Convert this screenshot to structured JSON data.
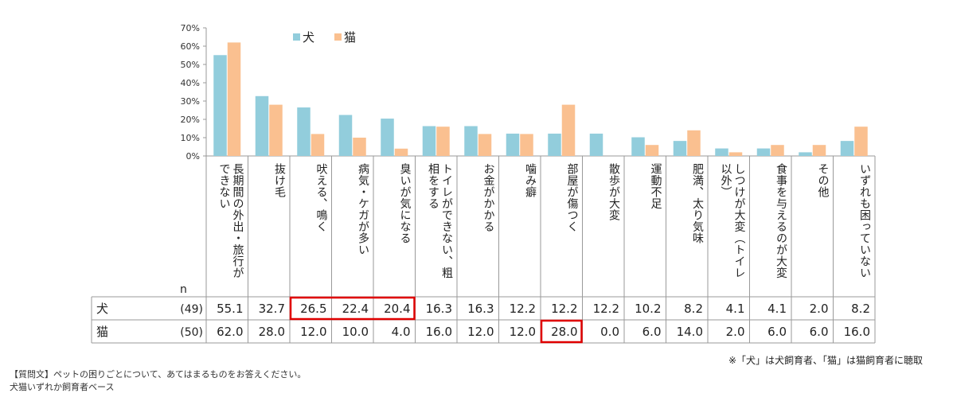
{
  "chart_data": {
    "type": "bar",
    "categories": [
      "長期間の外出・旅行ができない",
      "抜け毛",
      "吠える、鳴く",
      "病気・ケガが多い",
      "臭いが気になる",
      "トイレができない、粗相をする",
      "お金がかかる",
      "噛み癖",
      "部屋が傷つく",
      "散歩が大変",
      "運動不足",
      "肥満、太り気味",
      "しつけが大変（トイレ以外）",
      "食事を与えるのが大変",
      "その他",
      "いずれも困っていない"
    ],
    "category_lines": [
      [
        "長期間の外出・旅行が",
        "できない"
      ],
      [
        "抜け毛"
      ],
      [
        "吠える、鳴く"
      ],
      [
        "病気・ケガが多い"
      ],
      [
        "臭いが気になる"
      ],
      [
        "トイレができない、粗",
        "相をする"
      ],
      [
        "お金がかかる"
      ],
      [
        "噛み癖"
      ],
      [
        "部屋が傷つく"
      ],
      [
        "散歩が大変"
      ],
      [
        "運動不足"
      ],
      [
        "肥満、太り気味"
      ],
      [
        "しつけが大変（トイレ",
        "以外）"
      ],
      [
        "食事を与えるのが大変"
      ],
      [
        "その他"
      ],
      [
        "いずれも困っていない"
      ]
    ],
    "series": [
      {
        "name": "犬",
        "n": "(49)",
        "color": "#92CDDC",
        "values": [
          55.1,
          32.7,
          26.5,
          22.4,
          20.4,
          16.3,
          16.3,
          12.2,
          12.2,
          12.2,
          10.2,
          8.2,
          4.1,
          4.1,
          2.0,
          8.2
        ],
        "labels": [
          "55.1",
          "32.7",
          "26.5",
          "22.4",
          "20.4",
          "16.3",
          "16.3",
          "12.2",
          "12.2",
          "12.2",
          "10.2",
          "8.2",
          "4.1",
          "4.1",
          "2.0",
          "8.2"
        ]
      },
      {
        "name": "猫",
        "n": "(50)",
        "color": "#FAC090",
        "values": [
          62.0,
          28.0,
          12.0,
          10.0,
          4.0,
          16.0,
          12.0,
          12.0,
          28.0,
          0.0,
          6.0,
          14.0,
          2.0,
          6.0,
          6.0,
          16.0
        ],
        "labels": [
          "62.0",
          "28.0",
          "12.0",
          "10.0",
          "4.0",
          "16.0",
          "12.0",
          "12.0",
          "28.0",
          "0.0",
          "6.0",
          "14.0",
          "2.0",
          "6.0",
          "6.0",
          "16.0"
        ]
      }
    ],
    "ylim": [
      0,
      70
    ],
    "yticks": [
      0,
      10,
      20,
      30,
      40,
      50,
      60,
      70
    ],
    "ytick_labels": [
      "0%",
      "10%",
      "20%",
      "30%",
      "40%",
      "50%",
      "60%",
      "70%"
    ],
    "n_label": "n",
    "legend_position": "top-left",
    "highlights": [
      {
        "series": 0,
        "from": 2,
        "to": 4,
        "color": "#E00000"
      },
      {
        "series": 1,
        "from": 8,
        "to": 8,
        "color": "#E00000"
      }
    ],
    "grid": false
  },
  "notes": {
    "right": "※「犬」は犬飼育者、「猫」は猫飼育者に聴取",
    "question": "【質問文】ペットの困りごとについて、あてはまるものをお答えください。",
    "base": "犬猫いずれか飼育者ベース"
  }
}
